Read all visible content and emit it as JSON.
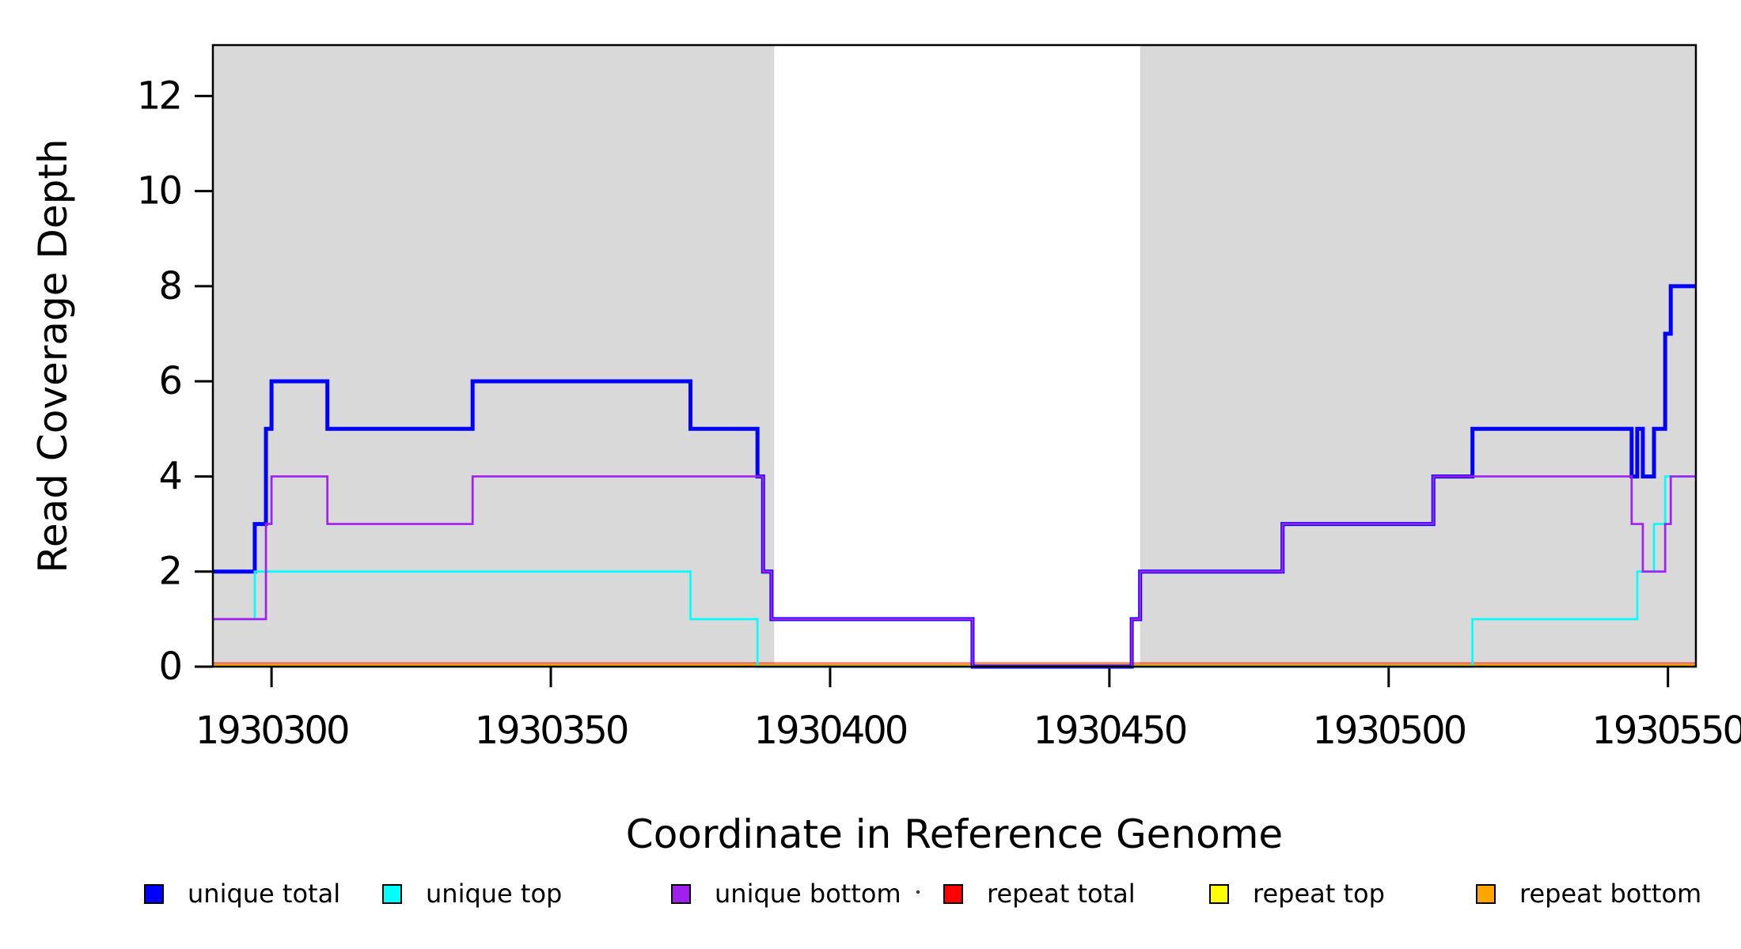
{
  "chart_data": {
    "type": "line",
    "subtype": "step",
    "title": "",
    "xlabel": "Coordinate in Reference Genome",
    "ylabel": "Read Coverage Depth",
    "xlim": [
      1930289.5,
      1930555
    ],
    "ylim": [
      0,
      13.07
    ],
    "x_ticks": [
      1930300,
      1930350,
      1930400,
      1930450,
      1930500,
      1930550
    ],
    "y_ticks": [
      0,
      2,
      4,
      6,
      8,
      10,
      12
    ],
    "grid": "off",
    "legend_position": "bottom",
    "shading_color": "#d9d9d9",
    "shaded_regions": [
      [
        1930289.5,
        1930390
      ],
      [
        1930455.5,
        1930555
      ]
    ],
    "series": [
      {
        "name": "unique total",
        "color": "#0000ff",
        "steps": [
          [
            1930289.5,
            2
          ],
          [
            1930297,
            3
          ],
          [
            1930299,
            5
          ],
          [
            1930300,
            6
          ],
          [
            1930310,
            5
          ],
          [
            1930336,
            6
          ],
          [
            1930375,
            5
          ],
          [
            1930387,
            4
          ],
          [
            1930388,
            2
          ],
          [
            1930389.5,
            1
          ],
          [
            1930425.5,
            0
          ],
          [
            1930454,
            1
          ],
          [
            1930455.5,
            2
          ],
          [
            1930481,
            3
          ],
          [
            1930508,
            4
          ],
          [
            1930515,
            5
          ],
          [
            1930543.5,
            4
          ],
          [
            1930544.5,
            5
          ],
          [
            1930545.5,
            4
          ],
          [
            1930547.5,
            5
          ],
          [
            1930549.5,
            7
          ],
          [
            1930550.5,
            8
          ]
        ]
      },
      {
        "name": "unique top",
        "color": "#00ffff",
        "steps": [
          [
            1930289.5,
            1
          ],
          [
            1930297,
            2
          ],
          [
            1930375,
            1
          ],
          [
            1930387,
            0
          ],
          [
            1930515,
            1
          ],
          [
            1930544.5,
            2
          ],
          [
            1930547.5,
            3
          ],
          [
            1930549.5,
            4
          ]
        ]
      },
      {
        "name": "unique bottom",
        "color": "#a020f0",
        "steps": [
          [
            1930289.5,
            1
          ],
          [
            1930299,
            3
          ],
          [
            1930300,
            4
          ],
          [
            1930310,
            3
          ],
          [
            1930336,
            4
          ],
          [
            1930388,
            2
          ],
          [
            1930389.5,
            1
          ],
          [
            1930425.5,
            0
          ],
          [
            1930454,
            1
          ],
          [
            1930455.5,
            2
          ],
          [
            1930481,
            3
          ],
          [
            1930508,
            4
          ],
          [
            1930543.5,
            3
          ],
          [
            1930545.5,
            2
          ],
          [
            1930549.5,
            3
          ],
          [
            1930550.5,
            4
          ]
        ]
      },
      {
        "name": "repeat total",
        "color": "#ff0000",
        "steps": [
          [
            1930289.5,
            0
          ]
        ]
      },
      {
        "name": "repeat top",
        "color": "#ffff00",
        "steps": [
          [
            1930289.5,
            0
          ]
        ]
      },
      {
        "name": "repeat bottom",
        "color": "#ffa500",
        "steps": [
          [
            1930289.5,
            0
          ]
        ]
      }
    ]
  }
}
